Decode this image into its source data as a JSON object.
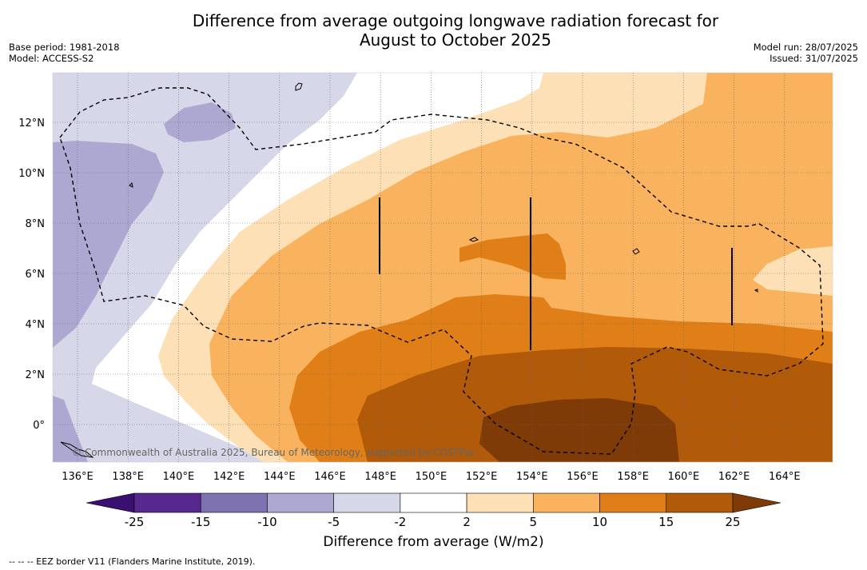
{
  "title_line1": "Difference from average outgoing longwave radiation forecast for",
  "title_line2": "August to October 2025",
  "meta_left": [
    "Base period: 1981-2018",
    "Model: ACCESS-S2"
  ],
  "meta_right": [
    "Model run: 28/07/2025",
    "Issued: 31/07/2025"
  ],
  "copyright": "© Commonwealth of Australia 2025, Bureau of Meteorology, supported by COSPPac",
  "lon_ticks": [
    "136°E",
    "138°E",
    "140°E",
    "142°E",
    "144°E",
    "146°E",
    "148°E",
    "150°E",
    "152°E",
    "154°E",
    "156°E",
    "158°E",
    "160°E",
    "162°E",
    "164°E"
  ],
  "lat_ticks": [
    "12°N",
    "10°N",
    "8°N",
    "6°N",
    "4°N",
    "2°N",
    "0°"
  ],
  "colorbar": {
    "ticks": [
      "-25",
      "-15",
      "-10",
      "-5",
      "-2",
      "2",
      "5",
      "10",
      "15",
      "25"
    ],
    "colors": [
      "#3b0f6f",
      "#57298f",
      "#7e73b0",
      "#ada8d2",
      "#d7d7ea",
      "#ffffff",
      "#fde0b5",
      "#f9b35e",
      "#e07f18",
      "#b05a0a",
      "#7e3b08"
    ],
    "title": "Difference from average (W/m2)"
  },
  "footnote": "-- -- -- EEZ border V11 (Flanders Marine Institute, 2019)."
}
